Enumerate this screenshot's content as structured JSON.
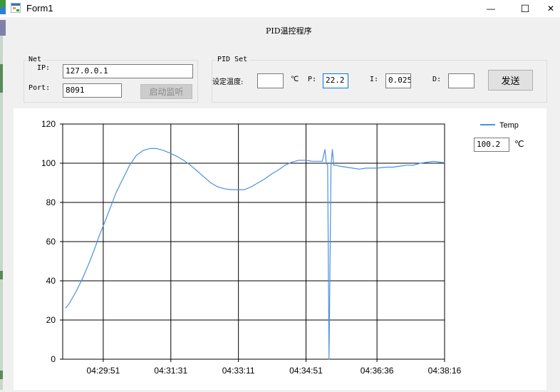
{
  "window": {
    "title": "Form1",
    "minimize_glyph": "—",
    "maximize_glyph": "☐",
    "close_glyph": "✕"
  },
  "header": {
    "title": "PID温控程序"
  },
  "net": {
    "group_title": "Net",
    "ip_label": "IP:",
    "ip_value": "127.0.0.1",
    "port_label": "Port:",
    "port_value": "8091",
    "listen_button": "启动监听"
  },
  "pid": {
    "group_title": "PID Set",
    "set_temp_label": "设定温度:",
    "set_temp_value": "",
    "unit": "℃",
    "p_label": "P:",
    "p_value": "22.2",
    "i_label": "I:",
    "i_value": "0.025",
    "d_label": "D:",
    "d_value": "",
    "send_button": "发送"
  },
  "readout": {
    "value": "100.2",
    "unit": "℃"
  },
  "colors": {
    "series": "#4a90e2",
    "window_bg": "#f0f0f0",
    "focus_border": "#0078d7"
  },
  "chart_data": {
    "type": "line",
    "title": "",
    "xlabel": "",
    "ylabel": "",
    "ylim": [
      0,
      120
    ],
    "y_ticks": [
      0,
      20,
      40,
      60,
      80,
      100,
      120
    ],
    "x_ticks": [
      "04:29:51",
      "04:31:31",
      "04:33:11",
      "04:34:51",
      "04:36:36",
      "04:38:16"
    ],
    "x_range": [
      "04:28:51",
      "04:38:16"
    ],
    "grid": true,
    "legend": "top-right",
    "series": [
      {
        "name": "Temp",
        "x": [
          "04:28:55",
          "04:29:00",
          "04:29:10",
          "04:29:20",
          "04:29:30",
          "04:29:40",
          "04:29:45",
          "04:29:51",
          "04:30:00",
          "04:30:10",
          "04:30:20",
          "04:30:30",
          "04:30:40",
          "04:30:50",
          "04:31:00",
          "04:31:10",
          "04:31:20",
          "04:31:31",
          "04:31:40",
          "04:31:50",
          "04:32:00",
          "04:32:10",
          "04:32:20",
          "04:32:30",
          "04:32:40",
          "04:32:50",
          "04:33:00",
          "04:33:11",
          "04:33:20",
          "04:33:30",
          "04:33:40",
          "04:33:50",
          "04:34:00",
          "04:34:10",
          "04:34:20",
          "04:34:30",
          "04:34:40",
          "04:34:51",
          "04:35:00",
          "04:35:10",
          "04:35:15",
          "04:35:19",
          "04:35:21",
          "04:35:23",
          "04:35:25",
          "04:35:28",
          "04:35:30",
          "04:35:32",
          "04:35:34",
          "04:35:36",
          "04:35:40",
          "04:35:50",
          "04:36:00",
          "04:36:10",
          "04:36:20",
          "04:36:36",
          "04:36:50",
          "04:37:00",
          "04:37:10",
          "04:37:20",
          "04:37:30",
          "04:37:40",
          "04:37:50",
          "04:38:00",
          "04:38:10",
          "04:38:16"
        ],
        "values": [
          26,
          28,
          34,
          41,
          49,
          58,
          63,
          68,
          76,
          85,
          92,
          99,
          104,
          106.5,
          107.5,
          107.5,
          106.5,
          105,
          103.5,
          101.5,
          99,
          96,
          93,
          90,
          88,
          87,
          86.5,
          86.5,
          86.5,
          88,
          90,
          92,
          94.5,
          96.5,
          99,
          100.5,
          101.5,
          101.5,
          101,
          101,
          101,
          107,
          100,
          99,
          0,
          99,
          107,
          99,
          99,
          99,
          98.5,
          98,
          97.5,
          97,
          97.5,
          97.5,
          98,
          98,
          98.5,
          99,
          99,
          100,
          100.5,
          101,
          100.5,
          100.2
        ]
      }
    ]
  }
}
